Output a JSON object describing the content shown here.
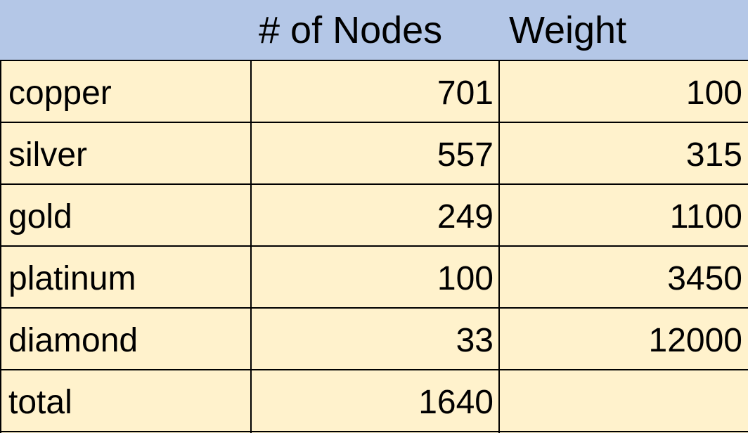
{
  "table": {
    "header": {
      "name": "",
      "nodes": "# of Nodes",
      "weight": "Weight"
    },
    "rows": [
      {
        "name": "copper",
        "nodes": "701",
        "weight": "100"
      },
      {
        "name": "silver",
        "nodes": "557",
        "weight": "315"
      },
      {
        "name": "gold",
        "nodes": "249",
        "weight": "1100"
      },
      {
        "name": "platinum",
        "nodes": "100",
        "weight": "3450"
      },
      {
        "name": "diamond",
        "nodes": "33",
        "weight": "12000"
      },
      {
        "name": "total",
        "nodes": "1640",
        "weight": ""
      }
    ]
  },
  "colors": {
    "header_background": "#b4c7e7",
    "body_background": "#fff2cc",
    "grid_lines": "#000000"
  }
}
